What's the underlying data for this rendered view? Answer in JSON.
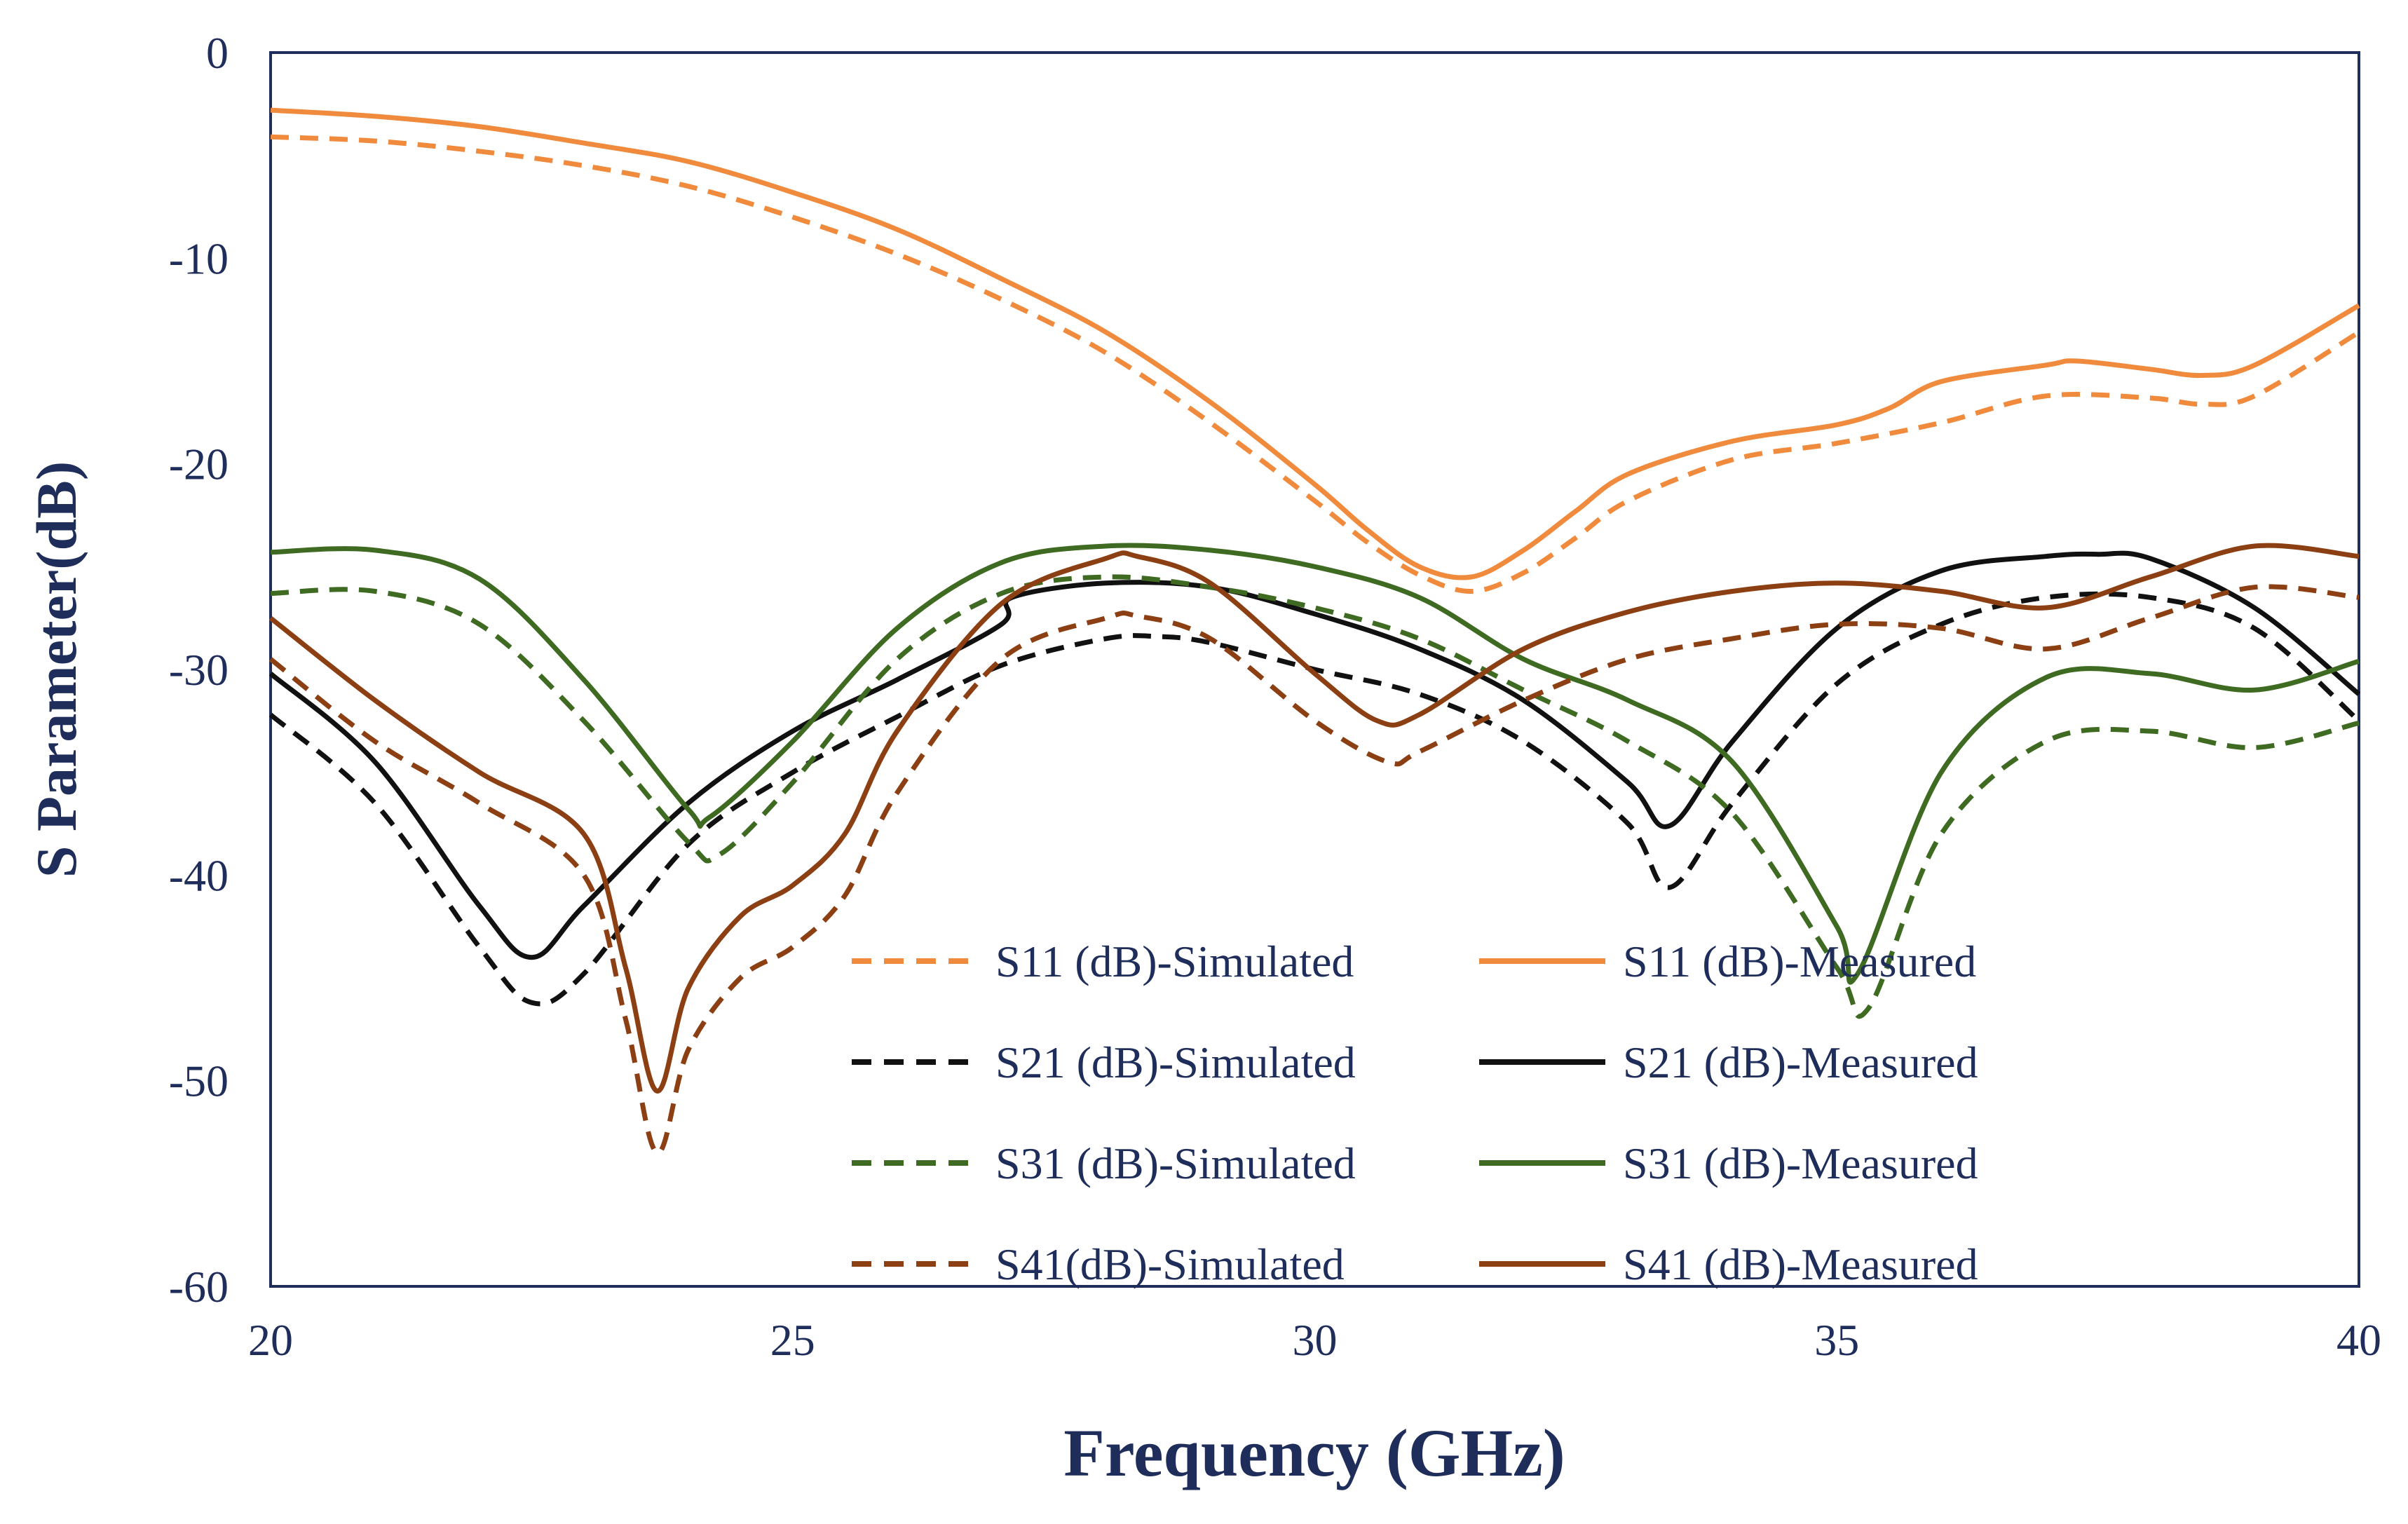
{
  "chart_data": {
    "type": "line",
    "title": "",
    "xlabel": "Frequency (GHz)",
    "ylabel": "S Parameter(dB)",
    "xlim": [
      20,
      40
    ],
    "ylim": [
      -60,
      0
    ],
    "xticks": [
      20,
      25,
      30,
      35,
      40
    ],
    "yticks": [
      0,
      -10,
      -20,
      -30,
      -40,
      -50,
      -60
    ],
    "grid": false,
    "legend_position": "bottom-right inside",
    "series": [
      {
        "name": "S11 (dB)-Simulated",
        "color": "#f08a3c",
        "dash": true,
        "x": [
          20,
          21,
          22,
          23,
          24,
          25,
          26,
          27,
          28,
          29,
          30,
          30.5,
          31,
          31.5,
          32,
          32.5,
          33,
          34,
          35,
          36,
          37,
          38,
          38.5,
          39,
          40
        ],
        "y": [
          -4.1,
          -4.3,
          -4.8,
          -5.5,
          -6.5,
          -8,
          -9.8,
          -12,
          -14.6,
          -18,
          -21.8,
          -23.8,
          -25.4,
          -26.2,
          -25.3,
          -23.6,
          -21.8,
          -19.8,
          -19,
          -18,
          -16.7,
          -16.8,
          -17.1,
          -16.7,
          -13.6
        ]
      },
      {
        "name": "S11 (dB)-Measured",
        "color": "#f08a3c",
        "dash": false,
        "x": [
          20,
          21,
          22,
          23,
          24,
          25,
          26,
          27,
          28,
          29,
          30,
          30.5,
          31,
          31.5,
          32,
          32.5,
          33,
          34,
          35,
          35.5,
          36,
          37,
          37.3,
          38,
          38.5,
          39,
          40
        ],
        "y": [
          -2.8,
          -3.1,
          -3.6,
          -4.4,
          -5.3,
          -6.8,
          -8.6,
          -11,
          -13.6,
          -17,
          -21,
          -23.2,
          -25,
          -25.5,
          -24.2,
          -22.3,
          -20.5,
          -18.9,
          -18.1,
          -17.3,
          -16,
          -15.2,
          -15,
          -15.4,
          -15.7,
          -15.2,
          -12.3
        ]
      },
      {
        "name": "S21 (dB)-Simulated",
        "color": "#111111",
        "dash": true,
        "x": [
          20,
          21,
          22,
          22.5,
          23,
          24,
          25,
          26,
          27,
          28,
          28.5,
          29,
          30,
          31,
          32,
          33,
          33.4,
          34,
          35,
          36,
          37,
          38,
          39,
          40
        ],
        "y": [
          -32.2,
          -36.5,
          -43.5,
          -46.2,
          -44.8,
          -38.5,
          -35,
          -32.3,
          -29.8,
          -28.5,
          -28.4,
          -28.7,
          -30,
          -31.2,
          -33.5,
          -37.5,
          -40.6,
          -36.5,
          -30.7,
          -27.8,
          -26.5,
          -26.5,
          -28,
          -32.5
        ]
      },
      {
        "name": "S21 (dB)-Measured",
        "color": "#111111",
        "dash": false,
        "x": [
          20,
          21,
          22,
          22.5,
          23,
          24,
          25,
          26,
          27,
          27.1,
          28,
          29,
          30,
          31,
          32,
          33,
          33.4,
          34,
          35,
          36,
          37,
          37.5,
          38,
          39,
          40
        ],
        "y": [
          -30.2,
          -34.5,
          -41.5,
          -44,
          -41.5,
          -36.5,
          -33,
          -30.5,
          -27.8,
          -26.5,
          -25.8,
          -26,
          -27.3,
          -29,
          -31.5,
          -35.5,
          -37.6,
          -33.5,
          -28,
          -25.2,
          -24.5,
          -24.4,
          -24.6,
          -27,
          -31.2
        ]
      },
      {
        "name": "S31 (dB)-Simulated",
        "color": "#3e6b21",
        "dash": true,
        "x": [
          20,
          21,
          22,
          23,
          24,
          24.3,
          25,
          26,
          27,
          28,
          29,
          30,
          31,
          32,
          33,
          34,
          35,
          35.3,
          36,
          37,
          38,
          39,
          40
        ],
        "y": [
          -26.3,
          -26.2,
          -27.8,
          -32.5,
          -38.4,
          -39,
          -35.5,
          -29.5,
          -26.3,
          -25.5,
          -26,
          -27,
          -28.5,
          -31,
          -33.5,
          -37,
          -44.5,
          -46.5,
          -38,
          -33.5,
          -33,
          -33.8,
          -32.6
        ]
      },
      {
        "name": "S31 (dB)-Measured",
        "color": "#3e6b21",
        "dash": false,
        "x": [
          20,
          21,
          22,
          23,
          24,
          24.2,
          25,
          26,
          27,
          28,
          29,
          30,
          31,
          32,
          33,
          34,
          35,
          35.2,
          36,
          37,
          38,
          39,
          40
        ],
        "y": [
          -24.3,
          -24.2,
          -25.6,
          -30.5,
          -36.8,
          -37.2,
          -33.5,
          -28,
          -24.8,
          -24,
          -24.2,
          -25,
          -26.5,
          -29.5,
          -31.5,
          -34.5,
          -42.5,
          -44.8,
          -35,
          -30.4,
          -30.2,
          -31,
          -29.6
        ]
      },
      {
        "name": "S41(dB)-Simulated",
        "color": "#8b3f12",
        "dash": true,
        "x": [
          20,
          21,
          22,
          23,
          23.4,
          23.7,
          24,
          24.5,
          25,
          25.5,
          26,
          27,
          28,
          28.3,
          29,
          30,
          30.7,
          31,
          32,
          33,
          34,
          35,
          36,
          37,
          38,
          39,
          40
        ],
        "y": [
          -29.5,
          -33.5,
          -36.5,
          -40,
          -47,
          -53.5,
          -48.5,
          -45,
          -43.5,
          -41,
          -36,
          -29.5,
          -27.5,
          -27.4,
          -28.5,
          -32.5,
          -34.5,
          -34,
          -31.5,
          -29.5,
          -28.5,
          -27.8,
          -28,
          -29,
          -27.5,
          -26,
          -26.5
        ]
      },
      {
        "name": "S41 (dB)-Measured",
        "color": "#8b3f12",
        "dash": false,
        "x": [
          20,
          21,
          22,
          23,
          23.4,
          23.7,
          24,
          24.5,
          25,
          25.5,
          26,
          27,
          28,
          28.3,
          29,
          30,
          30.6,
          31,
          32,
          33,
          34,
          35,
          36,
          37,
          38,
          39,
          40
        ],
        "y": [
          -27.5,
          -31.5,
          -35,
          -38,
          -44.5,
          -50.5,
          -45.5,
          -42,
          -40.5,
          -38,
          -33,
          -26.8,
          -24.6,
          -24.5,
          -25.8,
          -30.2,
          -32.5,
          -32.2,
          -29,
          -27.2,
          -26.2,
          -25.8,
          -26.2,
          -27,
          -25.5,
          -24,
          -24.5
        ]
      }
    ]
  }
}
